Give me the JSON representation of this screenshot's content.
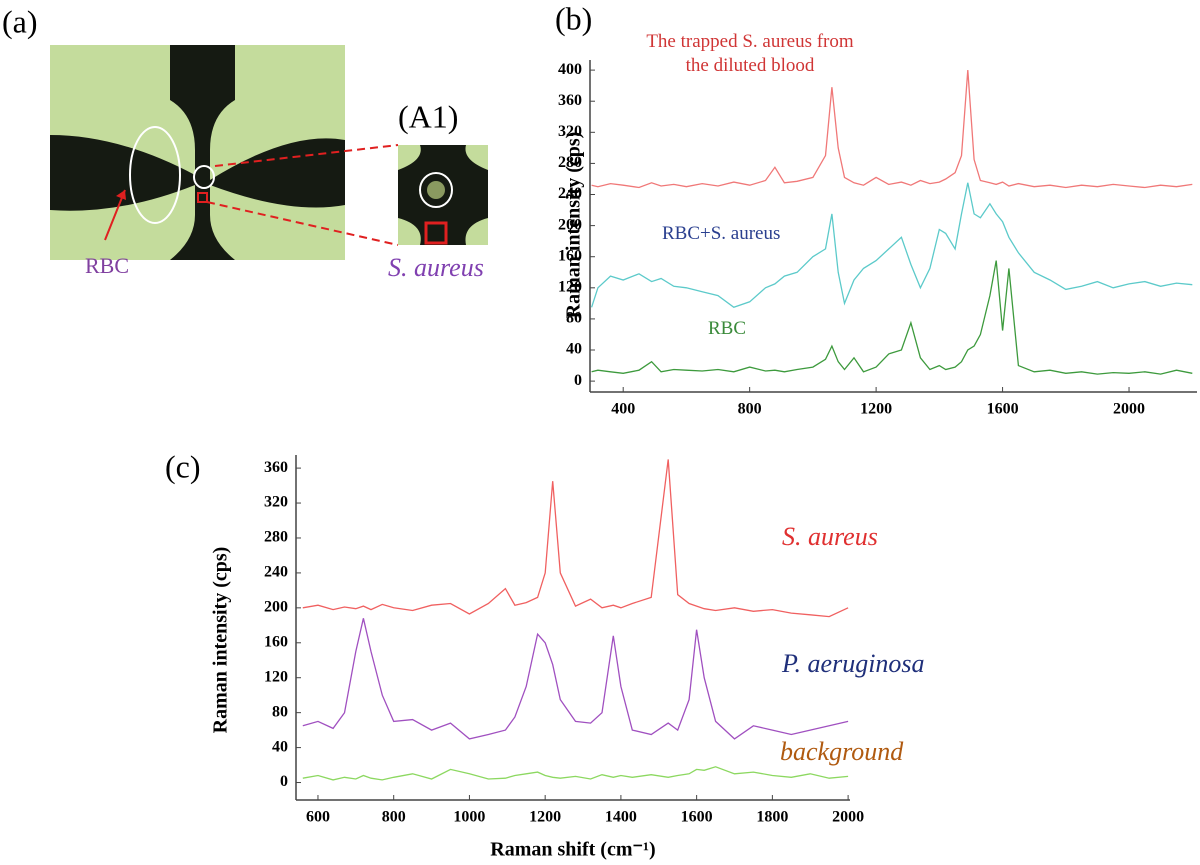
{
  "panel_a": {
    "label": "(a)",
    "inset_label": "(A1)",
    "rbc_label": "RBC",
    "bacteria_label": "S. aureus"
  },
  "chart_data": [
    {
      "type": "line",
      "label": "(b)",
      "ylabel": "Raman intensity (cps)",
      "x": [
        300,
        320,
        360,
        400,
        450,
        490,
        520,
        560,
        600,
        650,
        700,
        750,
        800,
        850,
        880,
        910,
        950,
        1000,
        1040,
        1060,
        1080,
        1100,
        1130,
        1160,
        1200,
        1240,
        1280,
        1310,
        1340,
        1370,
        1400,
        1420,
        1450,
        1470,
        1490,
        1510,
        1530,
        1560,
        1580,
        1600,
        1620,
        1650,
        1700,
        1750,
        1800,
        1850,
        1900,
        1950,
        2000,
        2050,
        2100,
        2150,
        2200
      ],
      "series": [
        {
          "name": "The trapped S. aureus from the diluted blood",
          "color": "#f07878",
          "label_color": "#d03535",
          "values": [
            252,
            250,
            254,
            252,
            249,
            255,
            251,
            253,
            250,
            254,
            251,
            256,
            252,
            258,
            275,
            255,
            257,
            262,
            290,
            378,
            300,
            262,
            255,
            252,
            262,
            253,
            256,
            252,
            258,
            254,
            256,
            260,
            268,
            290,
            400,
            285,
            258,
            255,
            253,
            256,
            251,
            254,
            250,
            252,
            249,
            252,
            250,
            253,
            251,
            249,
            252,
            250,
            253
          ]
        },
        {
          "name": "RBC+S. aureus",
          "color": "#5ccaca",
          "label_color": "#2a3f8f",
          "values": [
            95,
            120,
            135,
            130,
            138,
            128,
            132,
            122,
            120,
            115,
            110,
            95,
            102,
            120,
            125,
            135,
            140,
            160,
            170,
            215,
            140,
            100,
            130,
            145,
            155,
            170,
            185,
            150,
            120,
            145,
            195,
            190,
            170,
            215,
            255,
            215,
            210,
            228,
            215,
            205,
            185,
            165,
            140,
            130,
            118,
            122,
            128,
            120,
            125,
            128,
            122,
            126,
            124
          ]
        },
        {
          "name": "RBC",
          "color": "#3d9a3d",
          "label_color": "#3a8a3a",
          "values": [
            12,
            14,
            12,
            10,
            14,
            25,
            12,
            15,
            14,
            13,
            15,
            12,
            18,
            13,
            14,
            12,
            15,
            18,
            28,
            45,
            25,
            15,
            30,
            12,
            18,
            35,
            40,
            75,
            30,
            15,
            20,
            15,
            18,
            25,
            40,
            45,
            60,
            110,
            155,
            65,
            145,
            20,
            12,
            14,
            10,
            12,
            9,
            11,
            10,
            12,
            9,
            14,
            10
          ]
        }
      ],
      "xlim": [
        295,
        2215
      ],
      "xticks": [
        400,
        800,
        1200,
        1600,
        2000
      ],
      "ylim": [
        -14,
        413
      ],
      "yticks": [
        0,
        40,
        80,
        120,
        160,
        200,
        240,
        280,
        320,
        360,
        400
      ]
    },
    {
      "type": "line",
      "label": "(c)",
      "xlabel": "Raman shift (cm⁻¹)",
      "ylabel": "Raman intensity (cps)",
      "x": [
        560,
        600,
        640,
        670,
        700,
        720,
        740,
        770,
        800,
        850,
        900,
        950,
        1000,
        1050,
        1095,
        1120,
        1150,
        1180,
        1200,
        1220,
        1240,
        1280,
        1320,
        1350,
        1380,
        1400,
        1430,
        1480,
        1525,
        1550,
        1580,
        1600,
        1620,
        1650,
        1700,
        1750,
        1800,
        1850,
        1900,
        1950,
        2000
      ],
      "series": [
        {
          "name": "S. aureus",
          "color": "#f06060",
          "label_color": "#e03030",
          "values": [
            200,
            203,
            198,
            201,
            199,
            202,
            198,
            204,
            200,
            197,
            203,
            205,
            193,
            205,
            222,
            203,
            206,
            212,
            240,
            345,
            240,
            202,
            210,
            200,
            203,
            200,
            205,
            212,
            370,
            215,
            205,
            202,
            199,
            197,
            200,
            196,
            198,
            194,
            192,
            190,
            200
          ]
        },
        {
          "name": "P. aeruginosa",
          "color": "#a050c0",
          "label_color": "#1f2f7a",
          "values": [
            65,
            70,
            62,
            80,
            150,
            188,
            150,
            100,
            70,
            72,
            60,
            68,
            50,
            55,
            60,
            75,
            110,
            170,
            160,
            135,
            95,
            70,
            68,
            80,
            168,
            110,
            60,
            55,
            68,
            60,
            95,
            175,
            120,
            70,
            50,
            65,
            60,
            55,
            60,
            65,
            70
          ]
        },
        {
          "name": "background",
          "color": "#8cd860",
          "label_color": "#b05a10",
          "values": [
            5,
            8,
            3,
            6,
            4,
            8,
            5,
            3,
            6,
            10,
            4,
            15,
            10,
            4,
            5,
            8,
            10,
            12,
            8,
            6,
            5,
            7,
            4,
            9,
            6,
            8,
            6,
            9,
            6,
            8,
            10,
            15,
            14,
            18,
            10,
            12,
            8,
            6,
            10,
            5,
            7
          ]
        }
      ],
      "xlim": [
        542,
        2005
      ],
      "xticks": [
        600,
        800,
        1000,
        1200,
        1400,
        1600,
        1800,
        2000
      ],
      "ylim": [
        -20,
        375
      ],
      "yticks": [
        0,
        40,
        80,
        120,
        160,
        200,
        240,
        280,
        320,
        360
      ]
    }
  ]
}
